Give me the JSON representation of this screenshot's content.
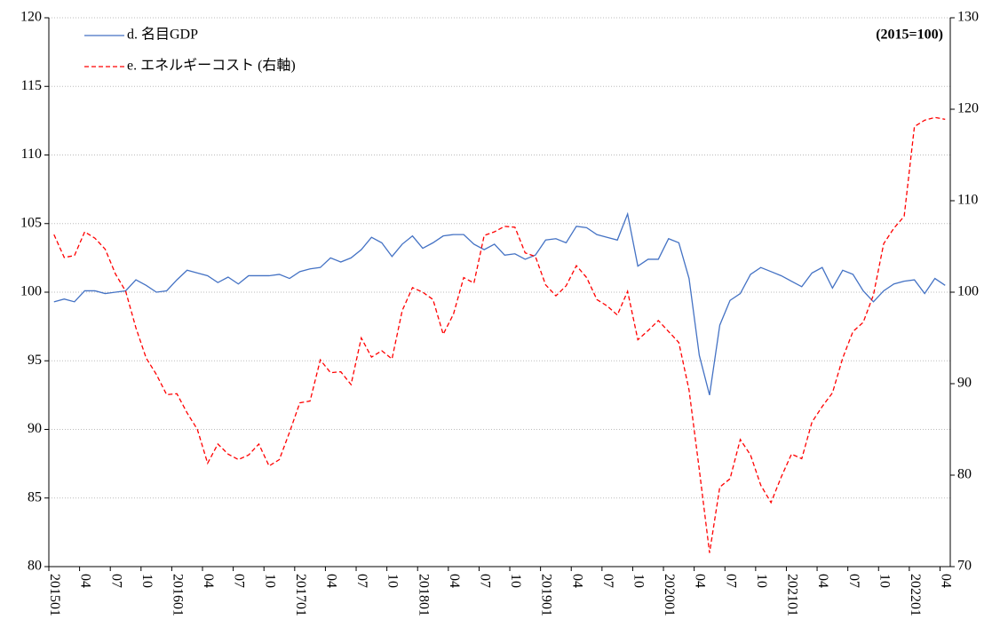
{
  "chart_data": {
    "type": "line",
    "annotation": "(2015=100)",
    "categories": [
      "201501",
      null,
      null,
      "04",
      null,
      null,
      "07",
      null,
      null,
      "10",
      null,
      null,
      "201601",
      null,
      null,
      "04",
      null,
      null,
      "07",
      null,
      null,
      "10",
      null,
      null,
      "201701",
      null,
      null,
      "04",
      null,
      null,
      "07",
      null,
      null,
      "10",
      null,
      null,
      "201801",
      null,
      null,
      "04",
      null,
      null,
      "07",
      null,
      null,
      "10",
      null,
      null,
      "201901",
      null,
      null,
      "04",
      null,
      null,
      "07",
      null,
      null,
      "10",
      null,
      null,
      "202001",
      null,
      null,
      "04",
      null,
      null,
      "07",
      null,
      null,
      "10",
      null,
      null,
      "202101",
      null,
      null,
      "04",
      null,
      null,
      "07",
      null,
      null,
      "10",
      null,
      null,
      "202201",
      null,
      null,
      "04"
    ],
    "series": [
      {
        "name": "d. 名目GDP",
        "color": "#4472c4",
        "line_style": "solid",
        "values": [
          99.3,
          99.5,
          99.3,
          100.1,
          100.1,
          99.9,
          100.0,
          100.1,
          100.9,
          100.5,
          100.0,
          100.1,
          100.9,
          101.6,
          101.4,
          101.2,
          100.7,
          101.1,
          100.6,
          101.2,
          101.2,
          101.2,
          101.3,
          101.0,
          101.5,
          101.7,
          101.8,
          102.5,
          102.2,
          102.5,
          103.1,
          104.0,
          103.6,
          102.6,
          103.5,
          104.1,
          103.2,
          103.6,
          104.1,
          104.2,
          104.2,
          103.5,
          103.1,
          103.5,
          102.7,
          102.8,
          102.4,
          102.7,
          103.8,
          103.9,
          103.6,
          104.8,
          104.7,
          104.2,
          104.0,
          103.8,
          105.7,
          101.9,
          102.4,
          102.4,
          103.9,
          103.6,
          101.0,
          95.4,
          92.5,
          97.6,
          99.4,
          99.9,
          101.3,
          101.8,
          101.5,
          101.2,
          100.8,
          100.4,
          101.4,
          101.8,
          100.3,
          101.6,
          101.3,
          100.1,
          99.3,
          100.1,
          100.6,
          100.8,
          100.9,
          99.9,
          101.0,
          100.5
        ]
      },
      {
        "name": "e. エネルギーコスト (右軸)",
        "color": "#ff0000",
        "line_style": "dashed",
        "axis": "y2",
        "values": [
          106.3,
          103.8,
          104.0,
          106.6,
          105.9,
          104.7,
          102.0,
          100.1,
          96.1,
          92.8,
          91.0,
          88.8,
          88.9,
          86.8,
          85.0,
          81.3,
          83.4,
          82.3,
          81.7,
          82.2,
          83.4,
          81.0,
          81.7,
          84.7,
          87.9,
          88.1,
          92.6,
          91.2,
          91.3,
          89.9,
          95.0,
          92.9,
          93.6,
          92.7,
          98.0,
          100.5,
          100.0,
          99.2,
          95.4,
          97.6,
          101.6,
          101.0,
          106.2,
          106.6,
          107.2,
          107.1,
          104.3,
          103.9,
          100.8,
          99.6,
          100.7,
          102.9,
          101.6,
          99.2,
          98.5,
          97.5,
          100.1,
          94.8,
          95.8,
          96.9,
          95.7,
          94.5,
          89.3,
          80.6,
          71.5,
          78.7,
          79.6,
          83.9,
          82.2,
          78.9,
          77.0,
          79.8,
          82.3,
          81.8,
          85.8,
          87.5,
          89.0,
          92.8,
          95.7,
          96.7,
          99.7,
          105.3,
          107.0,
          108.3,
          118.1,
          118.8,
          119.1,
          118.9
        ]
      }
    ],
    "ylim": [
      80,
      120
    ],
    "yticks": [
      80,
      85,
      90,
      95,
      100,
      105,
      110,
      115,
      120
    ],
    "y2lim": [
      70,
      130
    ],
    "y2ticks": [
      70,
      80,
      90,
      100,
      110,
      120,
      130
    ],
    "grid": true,
    "legend": "top-left"
  }
}
